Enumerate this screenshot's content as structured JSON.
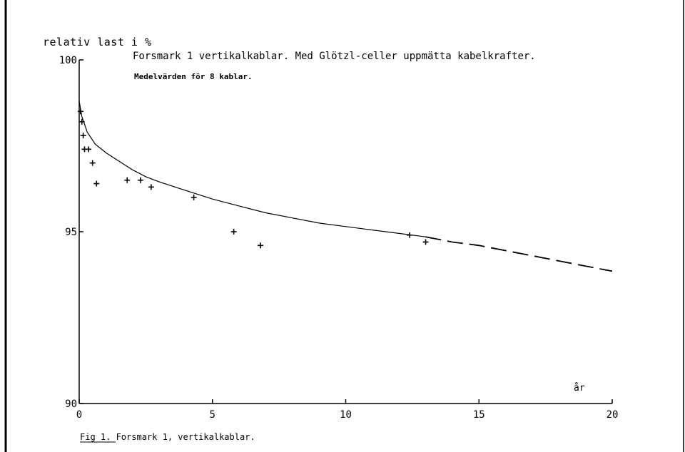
{
  "chart_data": {
    "type": "line",
    "ylabel": "relativ last i %",
    "title": "Forsmark 1 vertikalkablar. Med Glötzl-celler uppmätta kabelkrafter.",
    "subtitle": "Medelvärden för 8 kablar.",
    "xlabel": "år",
    "caption": "Fig 1. Forsmark 1, vertikalkablar.",
    "xlim": [
      0,
      20
    ],
    "ylim": [
      90,
      100
    ],
    "x_ticks": [
      0,
      5,
      10,
      15,
      20
    ],
    "y_ticks": [
      90,
      95,
      100
    ],
    "series": [
      {
        "style": "points",
        "x": [
          0.05,
          0.1,
          0.15,
          0.2,
          0.35,
          0.5,
          0.65,
          1.8,
          2.3,
          2.7,
          4.3,
          5.8,
          6.8,
          12.4,
          13.0
        ],
        "y": [
          98.5,
          98.2,
          97.8,
          97.4,
          97.4,
          97.0,
          96.4,
          96.5,
          96.5,
          96.3,
          96.0,
          95.0,
          94.6,
          94.9,
          94.7
        ]
      },
      {
        "style": "solid",
        "x": [
          0,
          0.1,
          0.3,
          0.6,
          1.0,
          1.5,
          2.0,
          2.5,
          3.0,
          4.0,
          5.0,
          6.0,
          7.0,
          8.0,
          9.0,
          10.0,
          11.0,
          12.0,
          13.0
        ],
        "y": [
          98.8,
          98.35,
          97.9,
          97.55,
          97.3,
          97.05,
          96.8,
          96.6,
          96.45,
          96.2,
          95.95,
          95.75,
          95.55,
          95.4,
          95.25,
          95.15,
          95.05,
          94.95,
          94.85
        ]
      },
      {
        "style": "dashed",
        "x": [
          13.0,
          14.0,
          15.0,
          16.0,
          17.0,
          18.0,
          19.0,
          20.0
        ],
        "y": [
          94.85,
          94.7,
          94.6,
          94.45,
          94.3,
          94.15,
          94.0,
          93.85
        ]
      }
    ]
  }
}
